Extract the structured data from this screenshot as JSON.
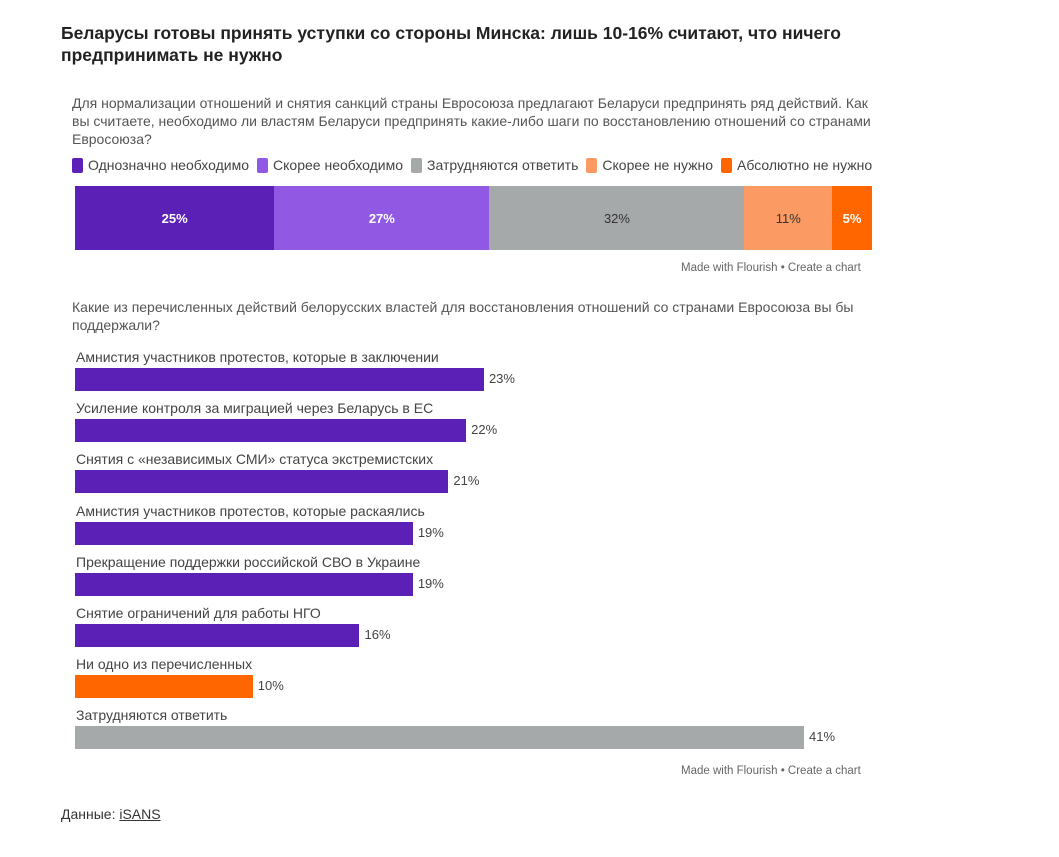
{
  "title": "Беларусы готовы принять уступки со стороны Минска: лишь 10-16% считают, что ничего предпринимать не нужно",
  "credit": "Made with Flourish • Create a chart",
  "source": {
    "label": "Данные:",
    "link": "iSANS"
  },
  "chart_data": [
    {
      "type": "bar",
      "orientation": "horizontal-stacked",
      "title": "Для нормализации отношений и снятия санкций страны Евросоюза предлагают Беларуси предпринять ряд действий. Как вы считаете, необходимо ли властям Беларуси предпринять какие-либо шаги по восстановлению отношений со странами Евросоюза?",
      "categories": [
        ""
      ],
      "series": [
        {
          "name": "Однозначно необходимо",
          "values": [
            25
          ],
          "label": "25%",
          "color": "#5b21b6"
        },
        {
          "name": "Скорее необходимо",
          "values": [
            27
          ],
          "label": "27%",
          "color": "#9159e3"
        },
        {
          "name": "Затрудняются ответить",
          "values": [
            32
          ],
          "label": "32%",
          "color": "#a6a9aa"
        },
        {
          "name": "Скорее не нужно",
          "values": [
            11
          ],
          "label": "11%",
          "color": "#fb9a62"
        },
        {
          "name": "Абсолютно не нужно",
          "values": [
            5
          ],
          "label": "5%",
          "color": "#ff6600"
        }
      ],
      "xlim": [
        0,
        100
      ]
    },
    {
      "type": "bar",
      "orientation": "horizontal",
      "title": "Какие из перечисленных действий белорусских властей для восстановления отношений со странами Евросоюза вы бы поддержали?",
      "xlim": [
        0,
        41
      ],
      "items": [
        {
          "label": "Амнистия участников протестов, которые в заключении",
          "value": 23,
          "value_label": "23%",
          "color": "#5b21b6"
        },
        {
          "label": "Усиление контроля за миграцией через Беларусь в ЕС",
          "value": 22,
          "value_label": "22%",
          "color": "#5b21b6"
        },
        {
          "label": "Снятия с «независимых СМИ» статуса экстремистских",
          "value": 21,
          "value_label": "21%",
          "color": "#5b21b6"
        },
        {
          "label": "Амнистия участников протестов, которые раскаялись",
          "value": 19,
          "value_label": "19%",
          "color": "#5b21b6"
        },
        {
          "label": "Прекращение поддержки российской СВО в Украине",
          "value": 19,
          "value_label": "19%",
          "color": "#5b21b6"
        },
        {
          "label": "Снятие ограничений для работы НГО",
          "value": 16,
          "value_label": "16%",
          "color": "#5b21b6"
        },
        {
          "label": "Ни одно из перечисленных",
          "value": 10,
          "value_label": "10%",
          "color": "#ff6600"
        },
        {
          "label": "Затрудняются ответить",
          "value": 41,
          "value_label": "41%",
          "color": "#a6a9aa"
        }
      ]
    }
  ]
}
